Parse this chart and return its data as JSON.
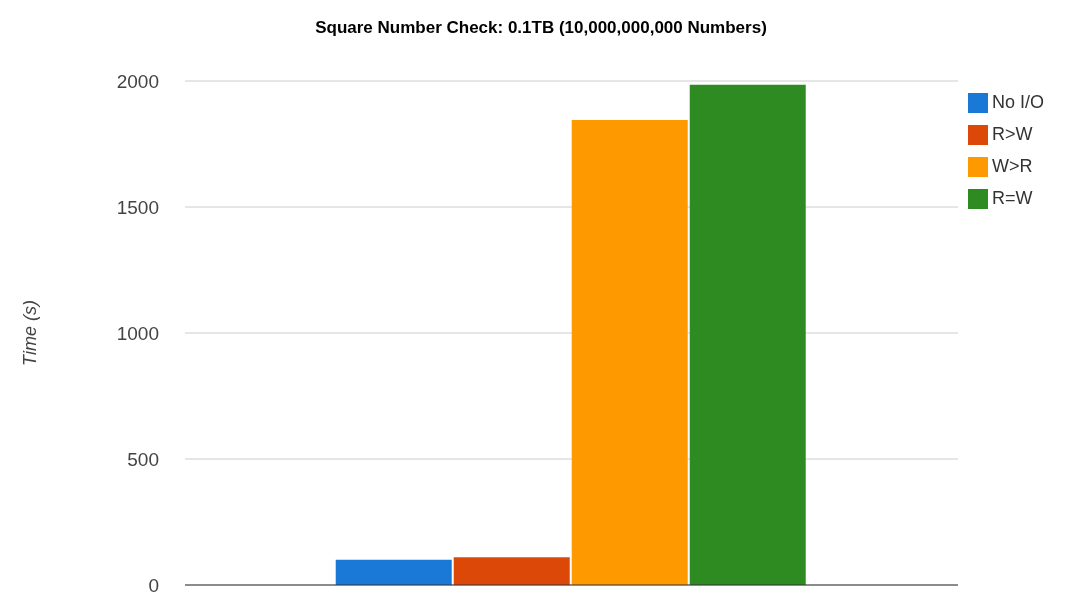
{
  "chart_data": {
    "type": "bar",
    "title": "Square Number Check: 0.1TB (10,000,000,000 Numbers)",
    "ylabel": "Time (s)",
    "categories": [
      null
    ],
    "series": [
      {
        "name": "No I/O",
        "color": "#1a78d6",
        "values": [
          100
        ]
      },
      {
        "name": "R>W",
        "color": "#dc4808",
        "values": [
          110
        ]
      },
      {
        "name": "W>R",
        "color": "#ff9900",
        "values": [
          1845
        ]
      },
      {
        "name": "R=W",
        "color": "#2e8b22",
        "values": [
          1985
        ]
      }
    ],
    "ylim": [
      0,
      2000
    ],
    "yticks": [
      0,
      500,
      1000,
      1500,
      2000
    ],
    "grid": "y",
    "legend": "top right"
  }
}
